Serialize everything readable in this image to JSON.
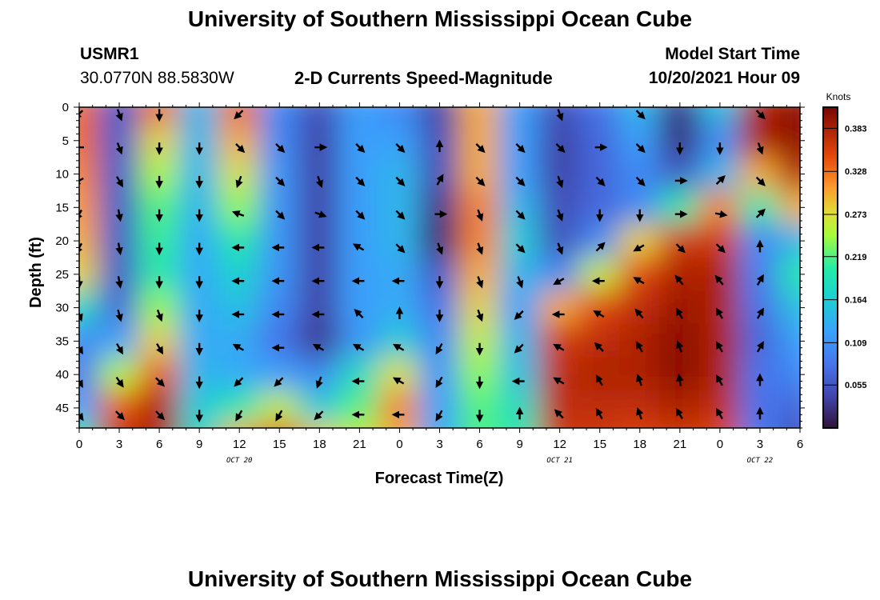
{
  "header": {
    "title": "University of Southern Mississippi Ocean Cube",
    "station_id": "USMR1",
    "coordinates": "30.0770N  88.5830W",
    "product": "2-D Currents Speed-Magnitude",
    "model_start_label": "Model Start Time",
    "model_start_value": "10/20/2021 Hour 09"
  },
  "footer": {
    "title_repeat": "University of Southern Mississippi Ocean Cube"
  },
  "chart_data": {
    "type": "heatmap",
    "xlabel": "Forecast Time(Z)",
    "ylabel": "Depth (ft)",
    "x_ticks": [
      "0",
      "3",
      "6",
      "9",
      "12",
      "15",
      "18",
      "21",
      "0",
      "3",
      "6",
      "9",
      "12",
      "15",
      "18",
      "21",
      "0",
      "3",
      "6"
    ],
    "y_ticks": [
      "0",
      "5",
      "10",
      "15",
      "20",
      "25",
      "30",
      "35",
      "40",
      "45"
    ],
    "xlim_hours": [
      0,
      54
    ],
    "ylim_ft": [
      0,
      48
    ],
    "date_markers": [
      {
        "label": "OCT 20",
        "hour": 12
      },
      {
        "label": "OCT 21",
        "hour": 36
      },
      {
        "label": "OCT 22",
        "hour": 51
      }
    ],
    "colorbar": {
      "unit": "Knots",
      "ticks": [
        "0.383",
        "0.328",
        "0.273",
        "0.219",
        "0.164",
        "0.109",
        "0.055"
      ],
      "tick_values": [
        0.383,
        0.328,
        0.273,
        0.219,
        0.164,
        0.109,
        0.055
      ],
      "range": [
        0.0,
        0.41
      ]
    },
    "speed_knots": [
      [
        0.33,
        0.06,
        0.33,
        0.14,
        0.33,
        0.1,
        0.05,
        0.12,
        0.1,
        0.04,
        0.3,
        0.12,
        0.05,
        0.08,
        0.14,
        0.03,
        0.15,
        0.38,
        0.4
      ],
      [
        0.33,
        0.06,
        0.28,
        0.14,
        0.3,
        0.1,
        0.04,
        0.12,
        0.12,
        0.05,
        0.3,
        0.12,
        0.04,
        0.07,
        0.12,
        0.02,
        0.1,
        0.38,
        0.4
      ],
      [
        0.32,
        0.06,
        0.25,
        0.14,
        0.27,
        0.11,
        0.04,
        0.12,
        0.14,
        0.05,
        0.3,
        0.12,
        0.04,
        0.07,
        0.1,
        0.06,
        0.14,
        0.3,
        0.38
      ],
      [
        0.31,
        0.06,
        0.22,
        0.14,
        0.24,
        0.11,
        0.04,
        0.12,
        0.14,
        0.03,
        0.32,
        0.14,
        0.05,
        0.07,
        0.1,
        0.2,
        0.32,
        0.2,
        0.3
      ],
      [
        0.3,
        0.06,
        0.21,
        0.13,
        0.2,
        0.11,
        0.04,
        0.12,
        0.14,
        0.02,
        0.32,
        0.16,
        0.05,
        0.1,
        0.28,
        0.36,
        0.36,
        0.1,
        0.14
      ],
      [
        0.28,
        0.06,
        0.2,
        0.13,
        0.17,
        0.11,
        0.04,
        0.12,
        0.13,
        0.06,
        0.3,
        0.14,
        0.1,
        0.26,
        0.35,
        0.38,
        0.38,
        0.09,
        0.2
      ],
      [
        0.18,
        0.07,
        0.24,
        0.13,
        0.15,
        0.1,
        0.04,
        0.12,
        0.13,
        0.08,
        0.28,
        0.12,
        0.3,
        0.35,
        0.37,
        0.39,
        0.38,
        0.08,
        0.15
      ],
      [
        0.1,
        0.12,
        0.28,
        0.13,
        0.13,
        0.08,
        0.03,
        0.11,
        0.16,
        0.1,
        0.26,
        0.14,
        0.36,
        0.37,
        0.38,
        0.4,
        0.38,
        0.07,
        0.12
      ],
      [
        0.08,
        0.25,
        0.34,
        0.14,
        0.13,
        0.12,
        0.1,
        0.18,
        0.27,
        0.11,
        0.24,
        0.15,
        0.37,
        0.38,
        0.38,
        0.4,
        0.38,
        0.08,
        0.1
      ],
      [
        0.12,
        0.34,
        0.38,
        0.16,
        0.2,
        0.26,
        0.16,
        0.22,
        0.32,
        0.12,
        0.22,
        0.18,
        0.37,
        0.37,
        0.37,
        0.38,
        0.37,
        0.08,
        0.07
      ],
      [
        0.2,
        0.37,
        0.38,
        0.18,
        0.3,
        0.35,
        0.28,
        0.26,
        0.3,
        0.13,
        0.22,
        0.2,
        0.36,
        0.36,
        0.35,
        0.36,
        0.35,
        0.09,
        0.05
      ]
    ],
    "vector_direction_deg": [
      [
        225,
        160,
        180,
        null,
        225,
        null,
        null,
        null,
        null,
        null,
        null,
        null,
        160,
        null,
        135,
        null,
        null,
        135,
        null
      ],
      [
        270,
        160,
        180,
        180,
        135,
        135,
        90,
        135,
        135,
        0,
        135,
        135,
        135,
        90,
        135,
        180,
        180,
        160,
        null
      ],
      [
        240,
        150,
        180,
        180,
        200,
        135,
        160,
        135,
        135,
        30,
        135,
        135,
        160,
        135,
        135,
        90,
        45,
        135,
        null
      ],
      [
        210,
        170,
        180,
        180,
        290,
        135,
        110,
        135,
        135,
        90,
        160,
        135,
        160,
        180,
        180,
        90,
        100,
        45,
        null
      ],
      [
        210,
        170,
        180,
        180,
        270,
        270,
        270,
        300,
        135,
        160,
        160,
        135,
        160,
        45,
        240,
        135,
        135,
        0,
        null
      ],
      [
        180,
        170,
        180,
        180,
        270,
        270,
        270,
        270,
        270,
        180,
        160,
        160,
        240,
        270,
        300,
        320,
        320,
        30,
        null
      ],
      [
        160,
        165,
        160,
        180,
        270,
        270,
        270,
        315,
        0,
        180,
        160,
        225,
        270,
        300,
        320,
        330,
        330,
        30,
        null
      ],
      [
        150,
        150,
        150,
        180,
        300,
        270,
        300,
        300,
        300,
        210,
        180,
        225,
        300,
        315,
        330,
        340,
        330,
        30,
        null
      ],
      [
        150,
        145,
        135,
        180,
        225,
        225,
        200,
        270,
        300,
        210,
        180,
        270,
        300,
        330,
        340,
        350,
        330,
        0,
        null
      ],
      [
        145,
        135,
        135,
        180,
        210,
        210,
        225,
        270,
        270,
        210,
        180,
        0,
        315,
        330,
        340,
        330,
        330,
        0,
        null
      ]
    ]
  }
}
